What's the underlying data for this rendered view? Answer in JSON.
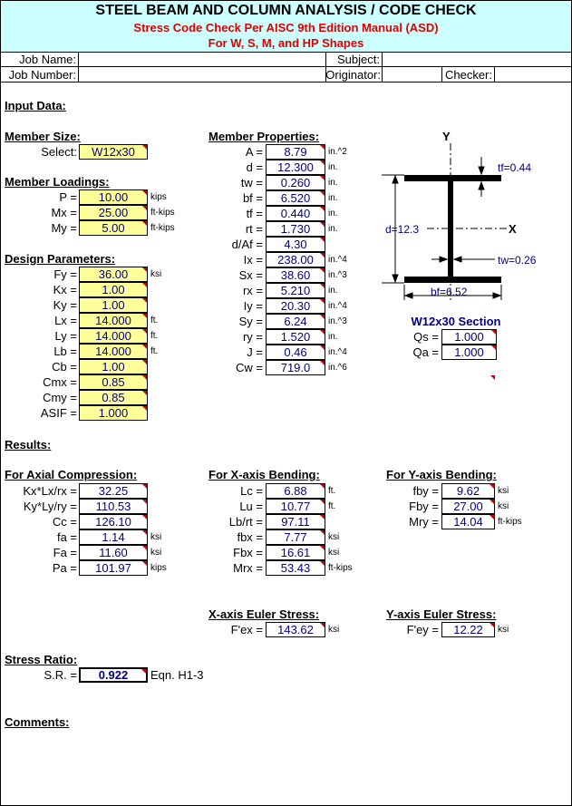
{
  "header": {
    "title": "STEEL BEAM AND COLUMN ANALYSIS / CODE CHECK",
    "subtitle1": "Stress Code Check Per AISC 9th Edition Manual (ASD)",
    "subtitle2": "For W, S, M, and HP Shapes"
  },
  "job": {
    "job_name": "Job Name:",
    "job_number": "Job Number:",
    "subject": "Subject:",
    "originator": "Originator:",
    "checker": "Checker:"
  },
  "input_heading": "Input Data:",
  "member_size": {
    "heading": "Member Size:",
    "rows": [
      {
        "label": "Select:",
        "value": "W12x30"
      }
    ]
  },
  "member_loadings": {
    "heading": "Member Loadings:",
    "rows": [
      {
        "label": "P =",
        "value": "10.00",
        "unit": "kips"
      },
      {
        "label": "Mx =",
        "value": "25.00",
        "unit": "ft-kips"
      },
      {
        "label": "My =",
        "value": "5.00",
        "unit": "ft-kips"
      }
    ]
  },
  "design_parameters": {
    "heading": "Design Parameters:",
    "rows": [
      {
        "label": "Fy =",
        "value": "36.00",
        "unit": "ksi"
      },
      {
        "label": "Kx =",
        "value": "1.00"
      },
      {
        "label": "Ky =",
        "value": "1.00"
      },
      {
        "label": "Lx =",
        "value": "14.000",
        "unit": "ft."
      },
      {
        "label": "Ly =",
        "value": "14.000",
        "unit": "ft."
      },
      {
        "label": "Lb =",
        "value": "14.000",
        "unit": "ft."
      },
      {
        "label": "Cb =",
        "value": "1.00"
      },
      {
        "label": "Cmx =",
        "value": "0.85"
      },
      {
        "label": "Cmy =",
        "value": "0.85"
      },
      {
        "label": "ASIF =",
        "value": "1.000"
      }
    ]
  },
  "member_properties": {
    "heading": "Member Properties:",
    "rows": [
      {
        "label": "A =",
        "value": "8.79",
        "unit": "in.^2"
      },
      {
        "label": "d =",
        "value": "12.300",
        "unit": "in."
      },
      {
        "label": "tw =",
        "value": "0.260",
        "unit": "in."
      },
      {
        "label": "bf =",
        "value": "6.520",
        "unit": "in."
      },
      {
        "label": "tf =",
        "value": "0.440",
        "unit": "in."
      },
      {
        "label": "rt =",
        "value": "1.730",
        "unit": "in."
      },
      {
        "label": "d/Af =",
        "value": "4.30"
      },
      {
        "label": "Ix =",
        "value": "238.00",
        "unit": "in.^4"
      },
      {
        "label": "Sx =",
        "value": "38.60",
        "unit": "in.^3"
      },
      {
        "label": "rx =",
        "value": "5.210",
        "unit": "in."
      },
      {
        "label": "Iy =",
        "value": "20.30",
        "unit": "in.^4"
      },
      {
        "label": "Sy =",
        "value": "6.24",
        "unit": "in.^3"
      },
      {
        "label": "ry =",
        "value": "1.520",
        "unit": "in."
      },
      {
        "label": "J =",
        "value": "0.46",
        "unit": "in.^4"
      },
      {
        "label": "Cw =",
        "value": "719.0",
        "unit": "in.^6"
      }
    ]
  },
  "diagram": {
    "y_axis": "Y",
    "x_axis": "X",
    "tf": "tf=0.44",
    "d": "d=12.3",
    "tw": "tw=0.26",
    "bf": "bf=6.52",
    "section": "W12x30 Section"
  },
  "section_factors": {
    "rows": [
      {
        "label": "Qs =",
        "value": "1.000"
      },
      {
        "label": "Qa =",
        "value": "1.000"
      }
    ]
  },
  "results_heading": "Results:",
  "axial": {
    "heading": "For Axial Compression:",
    "rows": [
      {
        "label": "Kx*Lx/rx =",
        "value": "32.25"
      },
      {
        "label": "Ky*Ly/ry =",
        "value": "110.53"
      },
      {
        "label": "Cc =",
        "value": "126.10"
      },
      {
        "label": "fa =",
        "value": "1.14",
        "unit": "ksi"
      },
      {
        "label": "Fa =",
        "value": "11.60",
        "unit": "ksi"
      },
      {
        "label": "Pa =",
        "value": "101.97",
        "unit": "kips"
      }
    ]
  },
  "x_bending": {
    "heading": "For X-axis Bending:",
    "rows": [
      {
        "label": "Lc =",
        "value": "6.88",
        "unit": "ft."
      },
      {
        "label": "Lu =",
        "value": "10.77",
        "unit": "ft."
      },
      {
        "label": "Lb/rt =",
        "value": "97.11"
      },
      {
        "label": "fbx =",
        "value": "7.77",
        "unit": "ksi"
      },
      {
        "label": "Fbx =",
        "value": "16.61",
        "unit": "ksi"
      },
      {
        "label": "Mrx =",
        "value": "53.43",
        "unit": "ft-kips"
      }
    ]
  },
  "y_bending": {
    "heading": "For Y-axis Bending:",
    "rows": [
      {
        "label": "fby =",
        "value": "9.62",
        "unit": "ksi"
      },
      {
        "label": "Fby =",
        "value": "27.00",
        "unit": "ksi"
      },
      {
        "label": "Mry =",
        "value": "14.04",
        "unit": "ft-kips"
      }
    ]
  },
  "x_euler": {
    "heading": "X-axis Euler Stress:",
    "rows": [
      {
        "label": "F'ex =",
        "value": "143.62",
        "unit": "ksi"
      }
    ]
  },
  "y_euler": {
    "heading": "Y-axis Euler Stress:",
    "rows": [
      {
        "label": "F'ey =",
        "value": "12.22",
        "unit": "ksi"
      }
    ]
  },
  "stress_ratio": {
    "heading": "Stress Ratio:",
    "rows": [
      {
        "label": "S.R. =",
        "value": "0.922",
        "unit": "Eqn. H1-3"
      }
    ]
  },
  "comments_heading": "Comments:"
}
